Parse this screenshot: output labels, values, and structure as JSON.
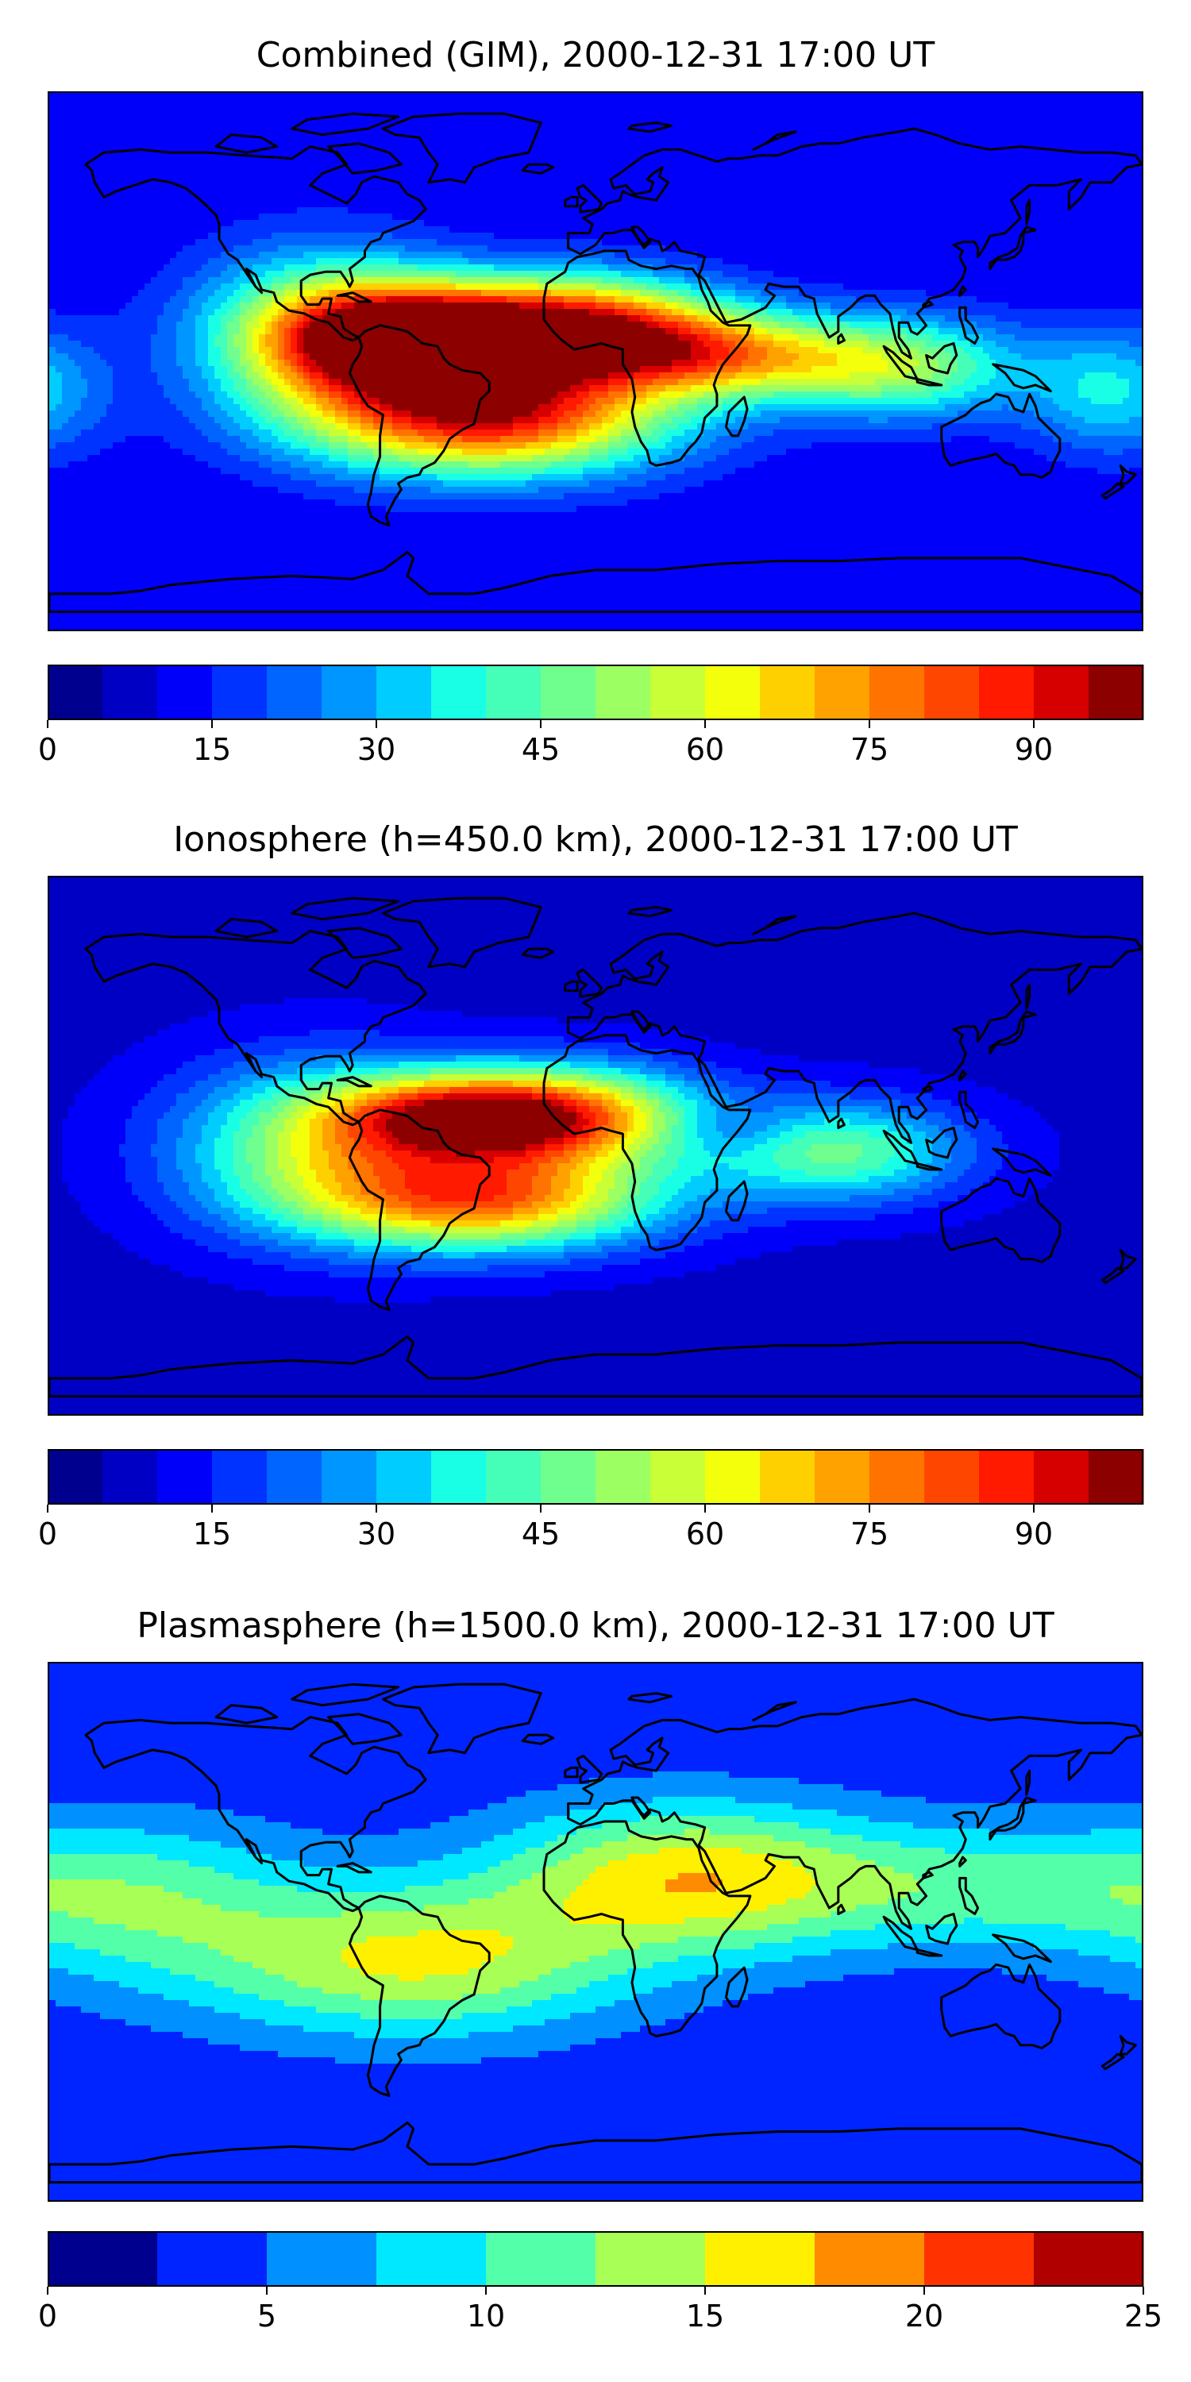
{
  "panels": [
    {
      "id": "combined",
      "title": "Combined (GIM), 2000-12-31 17:00 UT",
      "base_level": 10,
      "blobs": [
        {
          "lon": -60,
          "lat": 8,
          "rx": 30,
          "ry": 12,
          "amp": 82
        },
        {
          "lon": -35,
          "lat": -18,
          "rx": 42,
          "ry": 14,
          "amp": 80
        },
        {
          "lon": -5,
          "lat": 12,
          "rx": 32,
          "ry": 12,
          "amp": 70
        },
        {
          "lon": 40,
          "lat": 2,
          "rx": 32,
          "ry": 10,
          "amp": 50
        },
        {
          "lon": 100,
          "lat": -2,
          "rx": 28,
          "ry": 12,
          "amp": 40
        },
        {
          "lon": -90,
          "lat": 10,
          "rx": 30,
          "ry": 20,
          "amp": 40
        },
        {
          "lon": 170,
          "lat": -10,
          "rx": 20,
          "ry": 15,
          "amp": 25
        }
      ],
      "colorbar": {
        "min": 0,
        "max": 100,
        "step": 5,
        "ticks": [
          "0",
          "15",
          "30",
          "45",
          "60",
          "75",
          "90"
        ],
        "tick_values": [
          0,
          15,
          30,
          45,
          60,
          75,
          90
        ]
      }
    },
    {
      "id": "ionosphere",
      "title": "Ionosphere  (h=450.0 km), 2000-12-31 17:00 UT",
      "base_level": 8,
      "blobs": [
        {
          "lon": -45,
          "lat": 10,
          "rx": 30,
          "ry": 10,
          "amp": 65
        },
        {
          "lon": -35,
          "lat": -18,
          "rx": 40,
          "ry": 12,
          "amp": 66
        },
        {
          "lon": -5,
          "lat": 10,
          "rx": 30,
          "ry": 12,
          "amp": 52
        },
        {
          "lon": -90,
          "lat": 0,
          "rx": 35,
          "ry": 20,
          "amp": 40
        },
        {
          "lon": 80,
          "lat": -2,
          "rx": 30,
          "ry": 12,
          "amp": 38
        },
        {
          "lon": 45,
          "lat": 5,
          "rx": 15,
          "ry": 6,
          "amp": -10
        }
      ],
      "colorbar": {
        "min": 0,
        "max": 100,
        "step": 5,
        "ticks": [
          "0",
          "15",
          "30",
          "45",
          "60",
          "75",
          "90"
        ],
        "tick_values": [
          0,
          15,
          30,
          45,
          60,
          75,
          90
        ]
      }
    },
    {
      "id": "plasmasphere",
      "title": "Plasmasphere (h=1500.0 km), 2000-12-31 17:00 UT",
      "base_level": 3,
      "blobs": [
        {
          "lon": -60,
          "lat": -10,
          "rx": 50,
          "ry": 18,
          "amp": 12
        },
        {
          "lon": 30,
          "lat": 18,
          "rx": 45,
          "ry": 18,
          "amp": 13
        },
        {
          "lon": 130,
          "lat": 15,
          "rx": 50,
          "ry": 15,
          "amp": 7
        },
        {
          "lon": -150,
          "lat": 10,
          "rx": 40,
          "ry": 20,
          "amp": 7
        }
      ],
      "colorbar": {
        "min": 0,
        "max": 25,
        "step": 2.5,
        "ticks": [
          "0",
          "5",
          "10",
          "15",
          "20",
          "25"
        ],
        "tick_values": [
          0,
          5,
          10,
          15,
          20,
          25
        ]
      }
    }
  ],
  "colors": {
    "coastline": "#000000",
    "jet_100": [
      "#00008f",
      "#0000c4",
      "#0000fa",
      "#0033ff",
      "#0064ff",
      "#0096ff",
      "#00ccff",
      "#18ffe6",
      "#45ffb9",
      "#6fff8e",
      "#9cff62",
      "#c8ff36",
      "#f3ff0b",
      "#ffd000",
      "#ffa200",
      "#ff7400",
      "#ff4600",
      "#ff1a00",
      "#d70000",
      "#8c0000"
    ],
    "jet_25": [
      "#00008f",
      "#0024ff",
      "#0090ff",
      "#00e8ff",
      "#54ffaa",
      "#a8ff56",
      "#fff000",
      "#ff8c00",
      "#ff3200",
      "#b00000"
    ]
  }
}
